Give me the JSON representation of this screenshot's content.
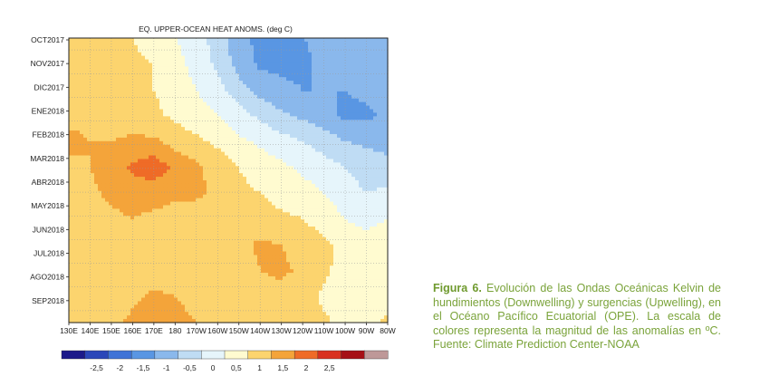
{
  "chart_data": {
    "type": "heatmap",
    "title": "EQ. UPPER-OCEAN HEAT ANOMS. (deg C)",
    "x_ticks": [
      "130E",
      "140E",
      "150E",
      "160E",
      "170E",
      "180",
      "170W",
      "160W",
      "150W",
      "140W",
      "130W",
      "120W",
      "110W",
      "100W",
      "90W",
      "80W"
    ],
    "y_ticks": [
      "OCT2017",
      "NOV2017",
      "DIC2017",
      "ENE2018",
      "FEB2018",
      "MAR2018",
      "ABR2018",
      "MAY2018",
      "JUN2018",
      "JUL2018",
      "AGO2018",
      "SEP2018"
    ],
    "grid": true,
    "colorbar": {
      "ticks": [
        "-2,5",
        "-2",
        "-1,5",
        "-1",
        "-0,5",
        "0",
        "0,5",
        "1",
        "1,5",
        "2",
        "2,5"
      ],
      "bin_edges": [
        -3.5,
        -3,
        -2.5,
        -2,
        -1.5,
        -1,
        -0.5,
        0,
        0.5,
        1,
        1.5,
        2,
        2.5,
        3
      ],
      "colors": [
        "#1c1a8a",
        "#2b47b9",
        "#3f73d7",
        "#5996e3",
        "#8ab8ec",
        "#bfdcf4",
        "#e6f5fb",
        "#fffbd0",
        "#fcd46e",
        "#f4a43a",
        "#ef6b27",
        "#d9311f",
        "#a61016",
        "#be9898"
      ]
    },
    "anomaly_grid_degC": [
      [
        0.6,
        0.6,
        0.6,
        0.5,
        0.3,
        0.0,
        -0.3,
        -0.7,
        -1.4,
        -1.6,
        -1.6,
        -1.5,
        -1.4,
        -1.3,
        -1.2,
        -1.0
      ],
      [
        0.8,
        0.9,
        0.8,
        0.6,
        0.5,
        0.2,
        -0.2,
        -0.6,
        -1.2,
        -1.6,
        -1.6,
        -1.6,
        -1.4,
        -1.4,
        -1.3,
        -1.1
      ],
      [
        0.9,
        0.9,
        0.8,
        0.7,
        0.5,
        0.3,
        0.0,
        -0.3,
        -0.8,
        -1.2,
        -1.4,
        -1.5,
        -1.5,
        -1.5,
        -1.4,
        -1.2
      ],
      [
        0.9,
        0.9,
        0.8,
        0.7,
        0.6,
        0.4,
        0.2,
        0.0,
        -0.3,
        -0.6,
        -0.9,
        -1.1,
        -1.3,
        -1.6,
        -1.6,
        -1.4
      ],
      [
        1.1,
        1.0,
        1.0,
        1.1,
        1.1,
        0.8,
        0.6,
        0.4,
        0.1,
        -0.1,
        -0.3,
        -0.5,
        -0.7,
        -1.0,
        -1.1,
        -1.2
      ],
      [
        0.9,
        1.0,
        1.3,
        1.6,
        1.8,
        1.4,
        1.1,
        0.8,
        0.5,
        0.3,
        0.1,
        -0.1,
        -0.3,
        -0.5,
        -0.7,
        -0.8
      ],
      [
        0.8,
        0.9,
        1.1,
        1.2,
        1.2,
        1.1,
        1.1,
        0.9,
        0.6,
        0.5,
        0.3,
        0.2,
        0.0,
        -0.3,
        -0.5,
        -0.4
      ],
      [
        0.7,
        0.7,
        0.9,
        1.0,
        0.9,
        0.8,
        0.7,
        0.6,
        0.6,
        0.7,
        0.6,
        0.5,
        0.3,
        0.0,
        -0.2,
        0.0
      ],
      [
        0.7,
        0.6,
        0.6,
        0.7,
        0.7,
        0.6,
        0.6,
        0.6,
        0.8,
        1.1,
        1.0,
        0.8,
        0.6,
        0.4,
        0.3,
        0.5
      ],
      [
        0.6,
        0.6,
        0.6,
        0.7,
        0.7,
        0.7,
        0.6,
        0.5,
        0.7,
        1.0,
        1.1,
        0.9,
        0.6,
        0.3,
        0.0,
        0.3
      ],
      [
        0.6,
        0.6,
        0.7,
        0.9,
        1.1,
        1.0,
        0.8,
        0.7,
        0.7,
        0.8,
        0.8,
        0.7,
        0.4,
        0.2,
        0.0,
        0.3
      ],
      [
        0.6,
        0.7,
        0.9,
        1.1,
        1.2,
        1.2,
        1.0,
        0.9,
        0.9,
        0.8,
        0.8,
        0.8,
        0.6,
        0.3,
        0.4,
        0.6
      ]
    ]
  },
  "caption": {
    "label": "Figura 6.",
    "text": " Evolución de las Ondas Oceánicas Kelvin de hundimientos (Downwelling) y surgencias (Upwelling), en el Océano Pacífico Ecuatorial (OPE). La escala de colores representa la magnitud de las anomalías en ºC. Fuente: Climate Prediction Center-NOAA"
  }
}
